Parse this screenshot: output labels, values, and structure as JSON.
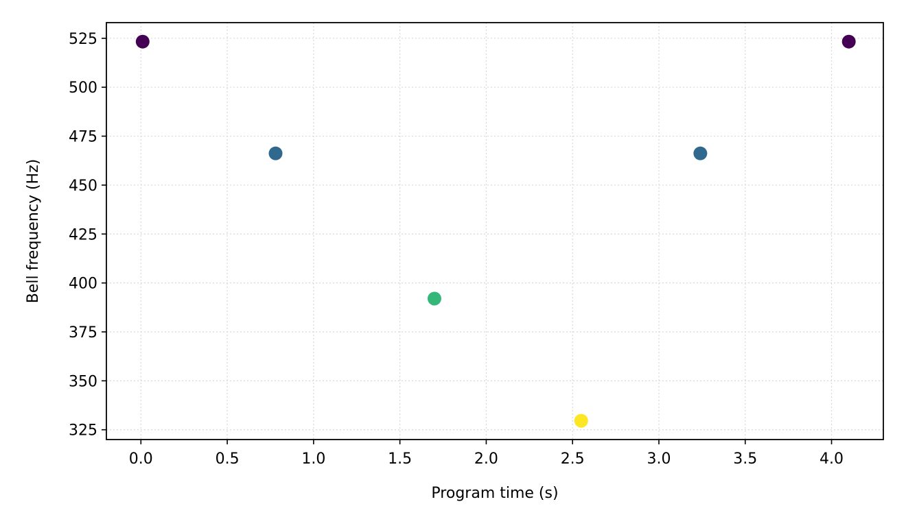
{
  "chart_data": {
    "type": "scatter",
    "title": "",
    "xlabel": "Program time (s)",
    "ylabel": "Bell frequency (Hz)",
    "xlim": [
      -0.2,
      4.3
    ],
    "ylim": [
      320,
      533
    ],
    "xticks": [
      0.0,
      0.5,
      1.0,
      1.5,
      2.0,
      2.5,
      3.0,
      3.5,
      4.0
    ],
    "xtick_labels": [
      "0.0",
      "0.5",
      "1.0",
      "1.5",
      "2.0",
      "2.5",
      "3.0",
      "3.5",
      "4.0"
    ],
    "yticks": [
      325,
      350,
      375,
      400,
      425,
      450,
      475,
      500,
      525
    ],
    "ytick_labels": [
      "325",
      "350",
      "375",
      "400",
      "425",
      "450",
      "475",
      "500",
      "525"
    ],
    "grid": true,
    "points": [
      {
        "x": 0.01,
        "y": 523.3,
        "color": "#440154"
      },
      {
        "x": 0.78,
        "y": 466.2,
        "color": "#31688e"
      },
      {
        "x": 1.7,
        "y": 392.0,
        "color": "#35b779"
      },
      {
        "x": 2.55,
        "y": 329.6,
        "color": "#fde725"
      },
      {
        "x": 3.24,
        "y": 466.2,
        "color": "#31688e"
      },
      {
        "x": 4.1,
        "y": 523.3,
        "color": "#440154"
      }
    ]
  }
}
